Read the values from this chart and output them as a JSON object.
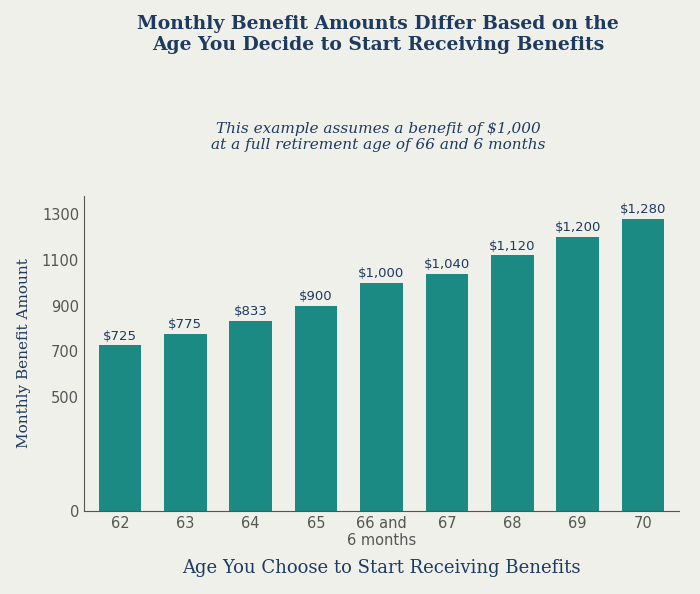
{
  "title_line1": "Monthly Benefit Amounts Differ Based on the",
  "title_line2": "Age You Decide to Start Receiving Benefits",
  "subtitle_line1": "This example assumes a benefit of $1,000",
  "subtitle_line2": "at a full retirement age of 66 and 6 months",
  "xlabel": "Age You Choose to Start Receiving Benefits",
  "ylabel": "Monthly Benefit Amount",
  "categories": [
    "62",
    "63",
    "64",
    "65",
    "66 and\n6 months",
    "67",
    "68",
    "69",
    "70"
  ],
  "values": [
    725,
    775,
    833,
    900,
    1000,
    1040,
    1120,
    1200,
    1280
  ],
  "bar_labels": [
    "$725",
    "$775",
    "$833",
    "$900",
    "$1,000",
    "$1,040",
    "$1,120",
    "$1,200",
    "$1,280"
  ],
  "bar_color": "#1a8a82",
  "title_color": "#1e3a5f",
  "subtitle_color": "#1e3a5f",
  "label_color": "#1e3a5f",
  "axis_color": "#555555",
  "background_color": "#f0f0eb",
  "ylim": [
    0,
    1380
  ],
  "yticks": [
    0,
    500,
    700,
    900,
    1100,
    1300
  ],
  "title_fontsize": 13.5,
  "subtitle_fontsize": 11,
  "xlabel_fontsize": 13,
  "ylabel_fontsize": 11,
  "bar_label_fontsize": 9.5,
  "tick_fontsize": 10.5
}
